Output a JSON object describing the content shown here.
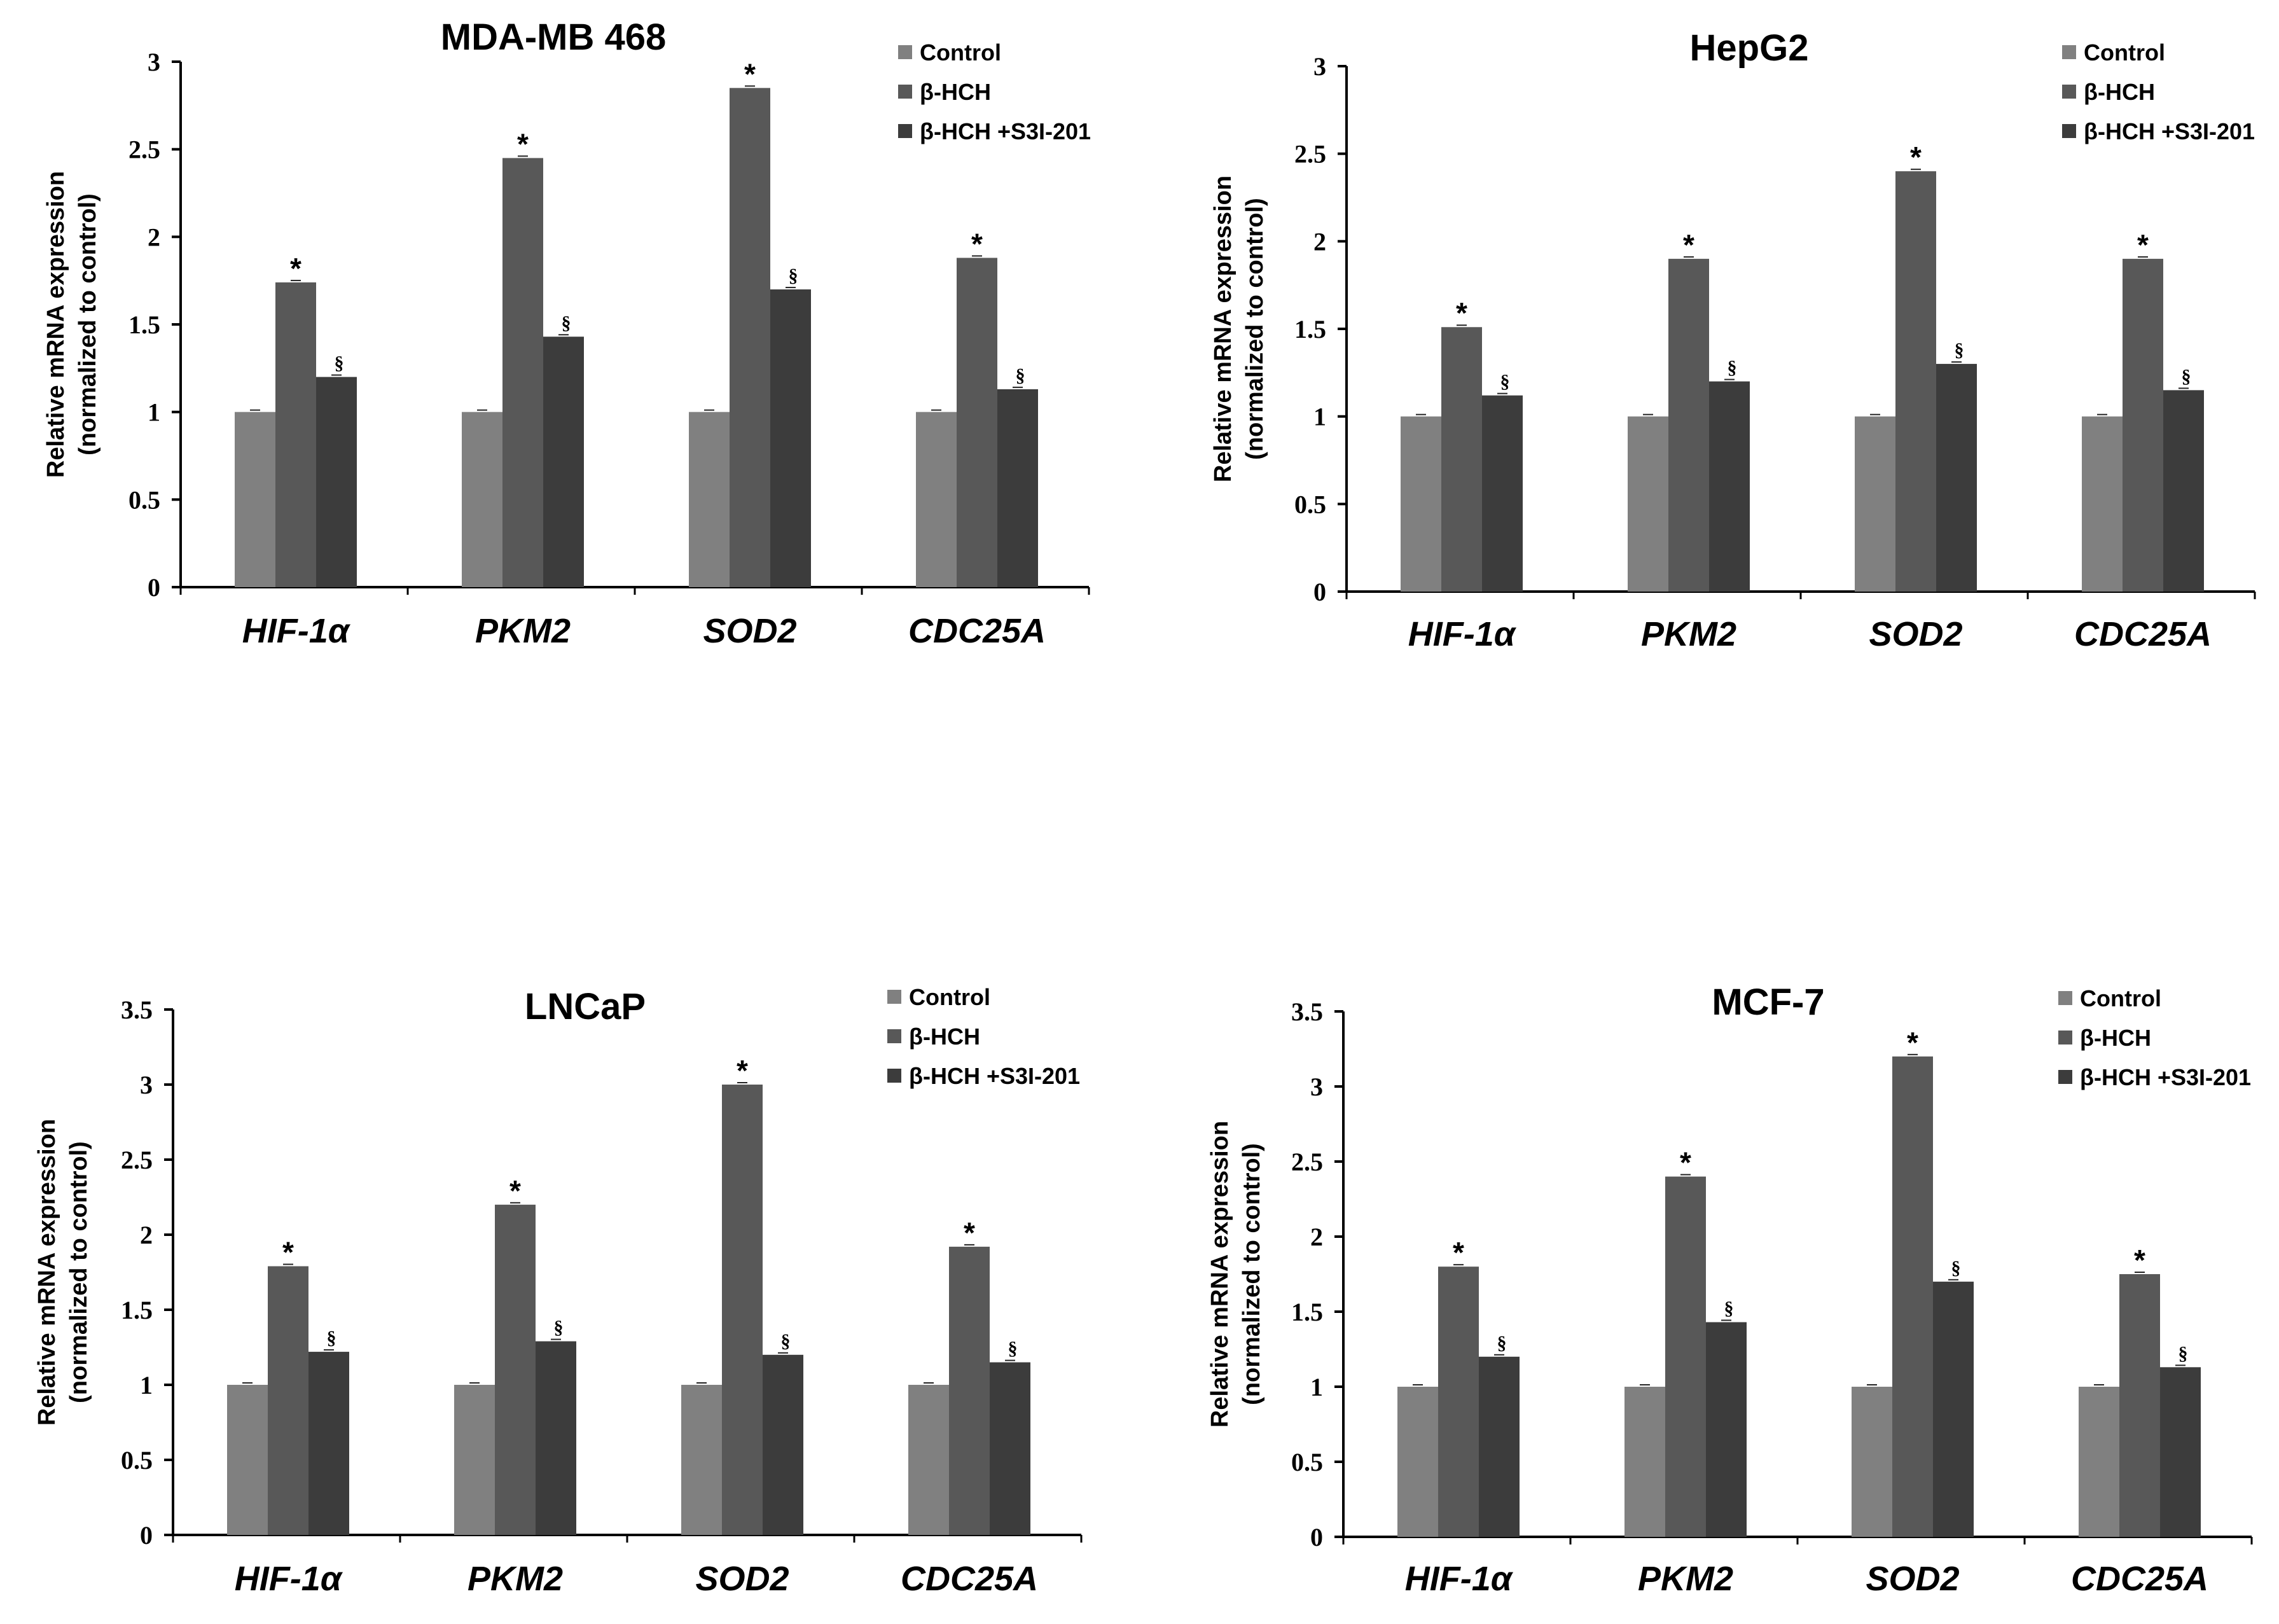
{
  "colors": {
    "control": "#808080",
    "bhch": "#585858",
    "bhch_s3i": "#3c3c3c",
    "axis": "#000000"
  },
  "chart_data": [
    {
      "type": "bar",
      "title": "MDA-MB 468",
      "ylabel_line1": "Relative mRNA expression",
      "ylabel_line2": "(normalized to control)",
      "xlabel": "",
      "ylim": [
        0,
        3
      ],
      "yticks": [
        0,
        0.5,
        1,
        1.5,
        2,
        2.5,
        3
      ],
      "ytick_labels": [
        "0",
        "0.5",
        "1",
        "1.5",
        "2",
        "2.5",
        "3"
      ],
      "categories": [
        "HIF-1α",
        "PKM2",
        "SOD2",
        "CDC25A"
      ],
      "series": [
        {
          "name": "Control",
          "values": [
            1,
            1,
            1,
            1
          ]
        },
        {
          "name": "β-HCH",
          "values": [
            1.74,
            2.45,
            2.85,
            1.88
          ]
        },
        {
          "name": "β-HCH +S3I-201",
          "values": [
            1.2,
            1.43,
            1.7,
            1.13
          ]
        }
      ],
      "markers": {
        "series_1": "*",
        "series_2": "§"
      },
      "legend": "top-right"
    },
    {
      "type": "bar",
      "title": "HepG2",
      "ylabel_line1": "Relative mRNA expression",
      "ylabel_line2": "(normalized to control)",
      "xlabel": "",
      "ylim": [
        0,
        3
      ],
      "yticks": [
        0,
        0.5,
        1,
        1.5,
        2,
        2.5,
        3
      ],
      "ytick_labels": [
        "0",
        "0.5",
        "1",
        "1.5",
        "2",
        "2.5",
        "3"
      ],
      "categories": [
        "HIF-1α",
        "PKM2",
        "SOD2",
        "CDC25A"
      ],
      "series": [
        {
          "name": "Control",
          "values": [
            1,
            1,
            1,
            1
          ]
        },
        {
          "name": "β-HCH",
          "values": [
            1.51,
            1.9,
            2.4,
            1.9
          ]
        },
        {
          "name": "β-HCH +S3I-201",
          "values": [
            1.12,
            1.2,
            1.3,
            1.15
          ]
        }
      ],
      "markers": {
        "series_1": "*",
        "series_2": "§"
      },
      "legend": "top-right"
    },
    {
      "type": "bar",
      "title": "LNCaP",
      "ylabel_line1": "Relative mRNA expression",
      "ylabel_line2": "(normalized to control)",
      "xlabel": "",
      "ylim": [
        0,
        3.5
      ],
      "yticks": [
        0,
        0.5,
        1,
        1.5,
        2,
        2.5,
        3,
        3.5
      ],
      "ytick_labels": [
        "0",
        "0.5",
        "1",
        "1.5",
        "2",
        "2.5",
        "3",
        "3.5"
      ],
      "categories": [
        "HIF-1α",
        "PKM2",
        "SOD2",
        "CDC25A"
      ],
      "series": [
        {
          "name": "Control",
          "values": [
            1,
            1,
            1,
            1
          ]
        },
        {
          "name": "β-HCH",
          "values": [
            1.79,
            2.2,
            3.0,
            1.92
          ]
        },
        {
          "name": "β-HCH +S3I-201",
          "values": [
            1.22,
            1.29,
            1.2,
            1.15
          ]
        }
      ],
      "markers": {
        "series_1": "*",
        "series_2": "§"
      },
      "legend": "top-right"
    },
    {
      "type": "bar",
      "title": "MCF-7",
      "ylabel_line1": "Relative mRNA expression",
      "ylabel_line2": "(normalized to control)",
      "xlabel": "",
      "ylim": [
        0,
        3.5
      ],
      "yticks": [
        0,
        0.5,
        1,
        1.5,
        2,
        2.5,
        3,
        3.5
      ],
      "ytick_labels": [
        "0",
        "0.5",
        "1",
        "1.5",
        "2",
        "2.5",
        "3",
        "3.5"
      ],
      "categories": [
        "HIF-1α",
        "PKM2",
        "SOD2",
        "CDC25A"
      ],
      "series": [
        {
          "name": "Control",
          "values": [
            1,
            1,
            1,
            1
          ]
        },
        {
          "name": "β-HCH",
          "values": [
            1.8,
            2.4,
            3.2,
            1.75
          ]
        },
        {
          "name": "β-HCH +S3I-201",
          "values": [
            1.2,
            1.43,
            1.7,
            1.13
          ]
        }
      ],
      "markers": {
        "series_1": "*",
        "series_2": "§"
      },
      "legend": "top-right"
    }
  ]
}
